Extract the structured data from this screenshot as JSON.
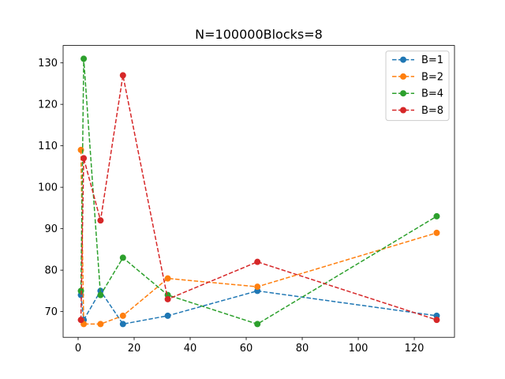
{
  "chart_data": {
    "type": "line",
    "title": "N=100000Blocks=8",
    "xlabel": "",
    "ylabel": "",
    "xlim": [
      -5.35,
      134.35
    ],
    "ylim": [
      63.8,
      134.2
    ],
    "xticks": [
      0,
      20,
      40,
      60,
      80,
      100,
      120
    ],
    "yticks": [
      70,
      80,
      90,
      100,
      110,
      120,
      130
    ],
    "grid": false,
    "legend_position": "top-right",
    "line_style": "dashed",
    "marker": "circle",
    "series": [
      {
        "name": "B=1",
        "color": "#1f77b4",
        "x": [
          1,
          2,
          8,
          16,
          32,
          64,
          128
        ],
        "y": [
          74,
          68,
          75,
          67,
          69,
          75,
          69
        ]
      },
      {
        "name": "B=2",
        "color": "#ff7f0e",
        "x": [
          1,
          2,
          8,
          16,
          32,
          64,
          128
        ],
        "y": [
          109,
          67,
          67,
          69,
          78,
          76,
          89
        ]
      },
      {
        "name": "B=4",
        "color": "#2ca02c",
        "x": [
          1,
          2,
          8,
          16,
          32,
          64,
          128
        ],
        "y": [
          75,
          131,
          74,
          83,
          74,
          67,
          93
        ]
      },
      {
        "name": "B=8",
        "color": "#d62728",
        "x": [
          1,
          2,
          8,
          16,
          32,
          64,
          128
        ],
        "y": [
          68,
          107,
          92,
          127,
          73,
          82,
          68
        ]
      }
    ]
  }
}
